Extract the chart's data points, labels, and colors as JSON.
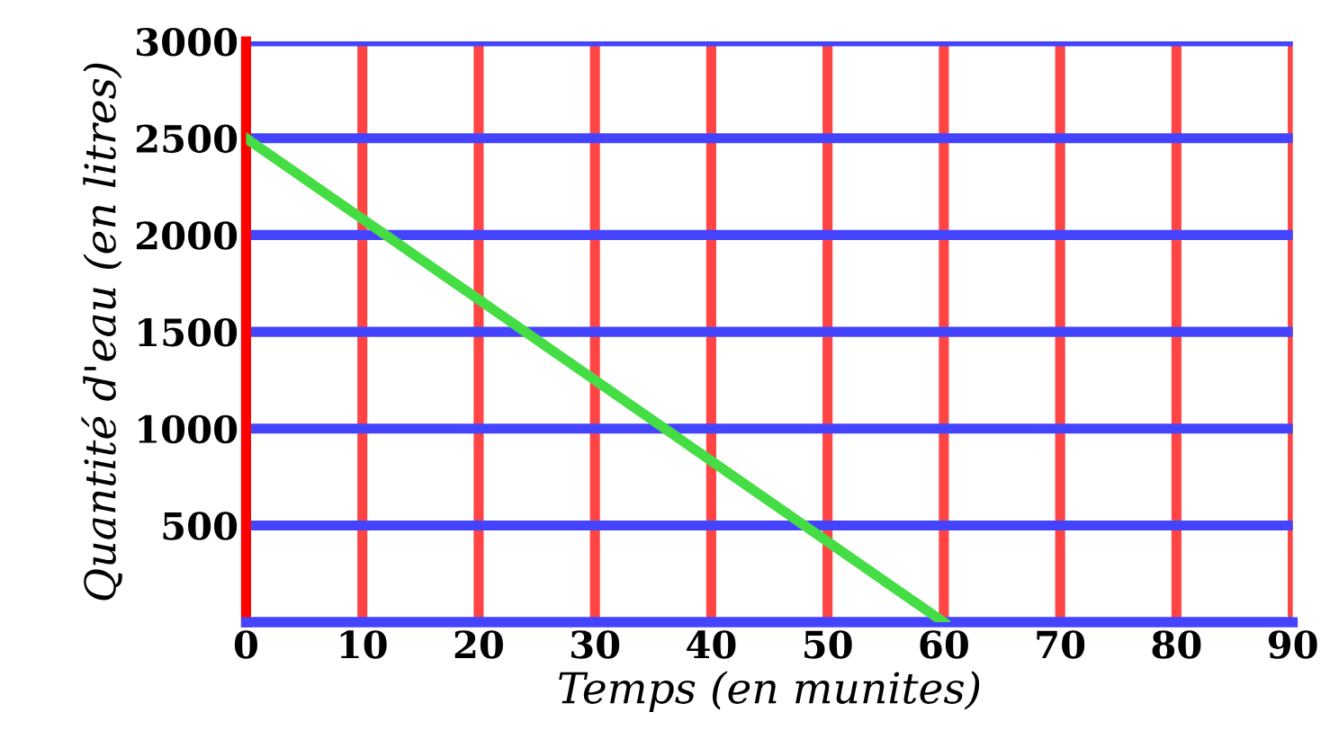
{
  "chart_data": {
    "type": "line",
    "xlabel": "Temps (en munites)",
    "ylabel": "Quantité d'eau (en litres)",
    "x": [
      0,
      60
    ],
    "series": [
      {
        "color": "#44dd44",
        "values": [
          2500,
          0
        ]
      }
    ],
    "xlim": [
      0,
      90
    ],
    "xticks": [
      0,
      10,
      20,
      30,
      40,
      50,
      60,
      70,
      80,
      90
    ],
    "ylim": [
      0,
      3000
    ],
    "yticks": [
      {
        "value": 0,
        "label": null
      },
      500,
      1000,
      1500,
      2000,
      2500,
      3000
    ],
    "grid": true,
    "marker": "none",
    "line_style": "solid",
    "legend": false
  }
}
